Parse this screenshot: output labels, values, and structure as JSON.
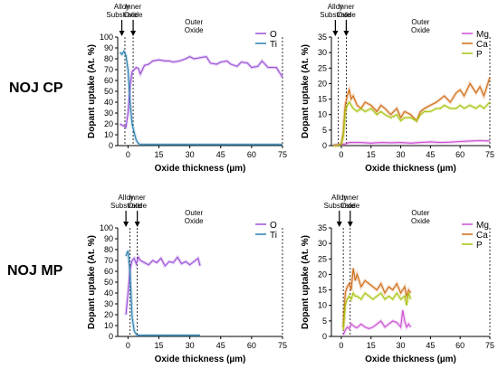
{
  "rows": [
    {
      "label": "NOJ CP"
    },
    {
      "label": "NOJ MP"
    }
  ],
  "colors": {
    "O": "#9b4fd8",
    "Ti": "#2a7fb0",
    "Mg": "#cc4fd2",
    "Ca": "#cf6a14",
    "P": "#a9c20c"
  },
  "chart_data": [
    {
      "type": "line",
      "title": "",
      "xlabel": "Oxide thickness (µm)",
      "ylabel": "Dopant uptake (At. %)",
      "xlim": [
        -5,
        75
      ],
      "ylim": [
        0,
        100
      ],
      "xticks": [
        0,
        15,
        30,
        45,
        60,
        75
      ],
      "yticks": [
        0,
        10,
        20,
        30,
        40,
        50,
        60,
        70,
        80,
        90,
        100
      ],
      "boundaries": [
        -1.5,
        2.5,
        75
      ],
      "annotations": [
        {
          "text": "Alloy Substrate",
          "x": -3,
          "arrow": true
        },
        {
          "text": "Inner Oxide",
          "x": 2.5,
          "arrow": true
        },
        {
          "text": "Outer Oxide",
          "x": 32,
          "arrow": false
        }
      ],
      "series": [
        {
          "name": "O",
          "color": "#9b4fd8",
          "x": [
            -4,
            -3,
            -2,
            -1,
            0,
            1,
            2,
            3,
            4,
            5,
            6,
            8,
            10,
            12,
            15,
            18,
            20,
            22,
            25,
            28,
            30,
            32,
            35,
            38,
            40,
            43,
            45,
            48,
            50,
            53,
            55,
            58,
            60,
            63,
            65,
            68,
            70,
            72,
            75
          ],
          "values": [
            20,
            19,
            18,
            17,
            30,
            55,
            68,
            70,
            72,
            71,
            66,
            74,
            75,
            78,
            79,
            78,
            78,
            77,
            78,
            80,
            82,
            80,
            81,
            82,
            76,
            75,
            77,
            78,
            75,
            73,
            77,
            76,
            72,
            73,
            78,
            72,
            72,
            72,
            63
          ]
        },
        {
          "name": "Ti",
          "color": "#2a7fb0",
          "x": [
            -4,
            -3,
            -2,
            -1,
            0,
            1,
            2,
            3,
            4,
            5,
            6,
            8,
            10,
            15,
            20,
            30,
            45,
            60,
            75
          ],
          "values": [
            86,
            84,
            87,
            83,
            70,
            40,
            20,
            12,
            5,
            2,
            1,
            1,
            1,
            1,
            1,
            1,
            1,
            1,
            1
          ]
        }
      ]
    },
    {
      "type": "line",
      "title": "",
      "xlabel": "Oxide thickness (µm)",
      "ylabel": "Dopant uptake (At. %)",
      "xlim": [
        -5,
        75
      ],
      "ylim": [
        0,
        35
      ],
      "xticks": [
        0,
        15,
        30,
        45,
        60,
        75
      ],
      "yticks": [
        0,
        5,
        10,
        15,
        20,
        25,
        30,
        35
      ],
      "boundaries": [
        -1.5,
        2.5,
        75
      ],
      "annotations": [
        {
          "text": "Alloy Substrate",
          "x": -3,
          "arrow": true
        },
        {
          "text": "Inner Oxide",
          "x": 2.5,
          "arrow": true
        },
        {
          "text": "Outer Oxide",
          "x": 40,
          "arrow": false
        }
      ],
      "series": [
        {
          "name": "Mg",
          "color": "#cc4fd2",
          "x": [
            -4,
            -2,
            0,
            2,
            4,
            6,
            10,
            15,
            20,
            25,
            30,
            35,
            40,
            45,
            50,
            55,
            60,
            65,
            70,
            75
          ],
          "values": [
            0.2,
            0.3,
            0.4,
            0.5,
            1,
            1,
            1,
            0.8,
            1,
            0.9,
            1,
            0.8,
            1,
            1.2,
            1,
            1.1,
            1.3,
            1.5,
            1.6,
            1.5
          ]
        },
        {
          "name": "Ca",
          "color": "#cf6a14",
          "x": [
            -4,
            -2,
            0,
            1,
            2,
            3,
            4,
            5,
            6,
            8,
            10,
            12,
            15,
            18,
            20,
            22,
            25,
            28,
            30,
            32,
            35,
            38,
            40,
            42,
            45,
            48,
            50,
            52,
            55,
            58,
            60,
            62,
            65,
            68,
            70,
            72,
            75
          ],
          "values": [
            0,
            0,
            0.5,
            4,
            13,
            16,
            18,
            15,
            16,
            13,
            12,
            14,
            13,
            11,
            13,
            12,
            10,
            12,
            9,
            11,
            10,
            8,
            11,
            12,
            13,
            14,
            15,
            16,
            14,
            17,
            18,
            16,
            20,
            17,
            19,
            16,
            22
          ]
        },
        {
          "name": "P",
          "color": "#a9c20c",
          "x": [
            -4,
            -2,
            0,
            1,
            2,
            3,
            4,
            5,
            6,
            8,
            10,
            12,
            15,
            18,
            20,
            22,
            25,
            28,
            30,
            32,
            35,
            38,
            40,
            42,
            45,
            48,
            50,
            52,
            55,
            58,
            60,
            62,
            65,
            68,
            70,
            72,
            75
          ],
          "values": [
            0,
            0,
            0.5,
            3,
            11,
            13,
            14,
            13,
            12,
            11,
            12,
            11,
            12,
            10,
            11,
            10,
            9,
            10,
            8,
            9,
            9,
            8,
            10,
            11,
            11,
            12,
            12,
            13,
            12,
            12,
            13,
            12,
            13,
            12,
            13,
            12,
            14
          ]
        }
      ]
    },
    {
      "type": "line",
      "title": "",
      "xlabel": "Oxide thickness (µm)",
      "ylabel": "Dopant uptake (At. %)",
      "xlim": [
        -5,
        75
      ],
      "ylim": [
        0,
        100
      ],
      "xticks": [
        0,
        15,
        30,
        45,
        60,
        75
      ],
      "yticks": [
        0,
        10,
        20,
        30,
        40,
        50,
        60,
        70,
        80,
        90,
        100
      ],
      "boundaries": [
        1,
        4.5,
        75
      ],
      "annotations": [
        {
          "text": "Alloy Substrate",
          "x": -1,
          "arrow": true
        },
        {
          "text": "Inner Oxide",
          "x": 4.5,
          "arrow": true
        },
        {
          "text": "Outer Oxide",
          "x": 32,
          "arrow": false
        }
      ],
      "series": [
        {
          "name": "O",
          "color": "#9b4fd8",
          "x": [
            -1,
            0,
            1,
            2,
            3,
            4,
            5,
            6,
            8,
            10,
            12,
            14,
            16,
            18,
            20,
            22,
            24,
            26,
            28,
            30,
            32,
            34,
            35
          ],
          "values": [
            20,
            40,
            62,
            70,
            72,
            67,
            73,
            70,
            68,
            66,
            70,
            68,
            72,
            65,
            69,
            68,
            73,
            67,
            69,
            66,
            69,
            72,
            65
          ]
        },
        {
          "name": "Ti",
          "color": "#2a7fb0",
          "x": [
            -1,
            0,
            1,
            2,
            3,
            4,
            5,
            6,
            8,
            10,
            15,
            20,
            25,
            30,
            35
          ],
          "values": [
            74,
            79,
            58,
            18,
            5,
            2,
            1,
            1,
            1,
            1,
            1,
            1,
            1,
            1,
            1
          ]
        }
      ]
    },
    {
      "type": "line",
      "title": "",
      "xlabel": "Oxide thickness (µm)",
      "ylabel": "Dopant uptake (At. %)",
      "xlim": [
        -5,
        75
      ],
      "ylim": [
        0,
        35
      ],
      "xticks": [
        0,
        15,
        30,
        45,
        60,
        75
      ],
      "yticks": [
        0,
        5,
        10,
        15,
        20,
        25,
        30,
        35
      ],
      "boundaries": [
        1,
        4.5,
        75
      ],
      "annotations": [
        {
          "text": "Alloy Substrate",
          "x": -1,
          "arrow": true
        },
        {
          "text": "Inner Oxide",
          "x": 4.5,
          "arrow": true
        },
        {
          "text": "Outer Oxide",
          "x": 40,
          "arrow": false
        }
      ],
      "series": [
        {
          "name": "Mg",
          "color": "#cc4fd2",
          "x": [
            1,
            2,
            3,
            4,
            5,
            6,
            7,
            8,
            10,
            12,
            14,
            16,
            18,
            20,
            22,
            24,
            26,
            28,
            30,
            31,
            32,
            33,
            34,
            35
          ],
          "values": [
            0.5,
            2,
            3,
            2.5,
            4,
            3.5,
            3,
            2.8,
            4,
            3,
            2.5,
            3,
            4,
            5,
            3,
            4,
            5,
            4.5,
            3,
            8.5,
            5,
            3,
            4,
            3
          ]
        },
        {
          "name": "Ca",
          "color": "#cf6a14",
          "x": [
            1,
            2,
            3,
            4,
            5,
            6,
            7,
            8,
            10,
            12,
            14,
            16,
            18,
            20,
            22,
            24,
            26,
            28,
            30,
            32,
            33,
            34,
            35
          ],
          "values": [
            3,
            14,
            16,
            17,
            15,
            22,
            18,
            20,
            16,
            18,
            17,
            16,
            15,
            17,
            14,
            16,
            15,
            17,
            14,
            16,
            13,
            15,
            14
          ]
        },
        {
          "name": "P",
          "color": "#a9c20c",
          "x": [
            1,
            2,
            3,
            4,
            5,
            6,
            7,
            8,
            10,
            12,
            14,
            16,
            18,
            20,
            22,
            24,
            26,
            28,
            30,
            32,
            33,
            34,
            35
          ],
          "values": [
            2,
            10,
            12,
            13,
            12,
            14,
            13,
            13,
            12,
            14,
            13,
            12,
            13,
            14,
            12,
            13,
            12,
            14,
            12,
            13,
            10,
            14,
            12
          ]
        }
      ]
    }
  ]
}
